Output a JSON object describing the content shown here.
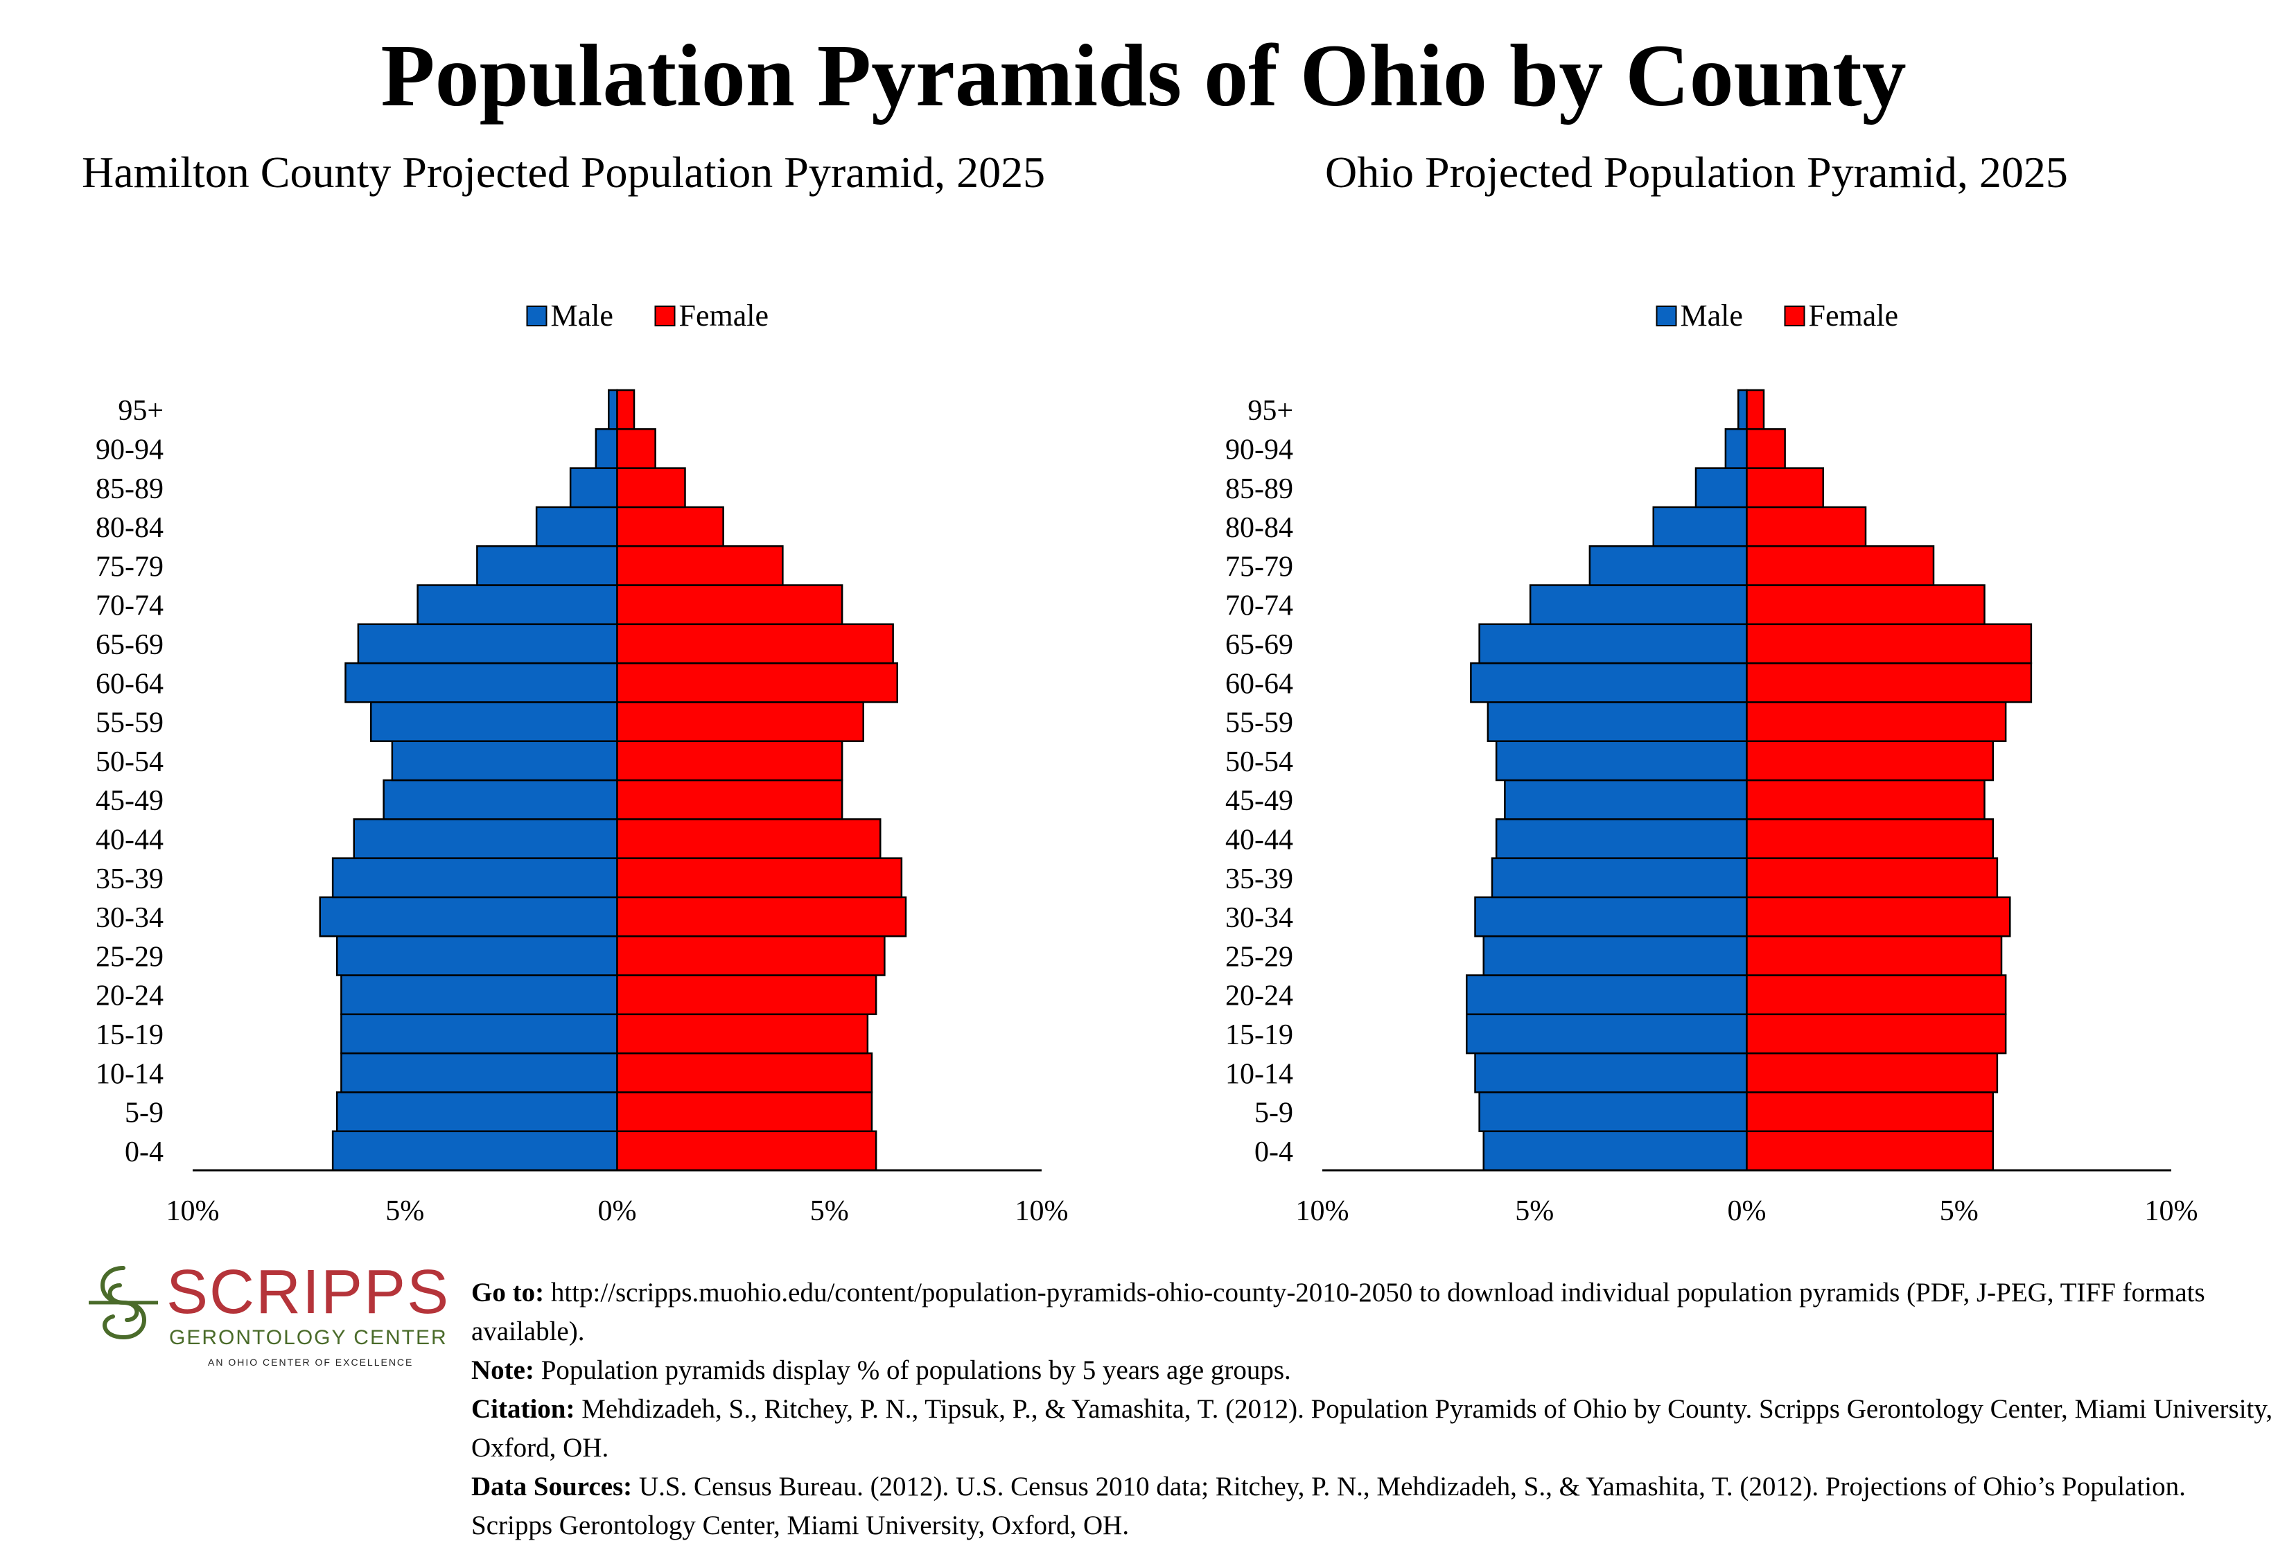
{
  "page": {
    "title": "Population Pyramids of Ohio by County"
  },
  "chart_data": [
    {
      "type": "bar",
      "subtype": "population-pyramid",
      "title": "Hamilton County Projected Population Pyramid, 2025",
      "legend": {
        "position": "top",
        "entries": [
          "Male",
          "Female"
        ]
      },
      "categories": [
        "0-4",
        "5-9",
        "10-14",
        "15-19",
        "20-24",
        "25-29",
        "30-34",
        "35-39",
        "40-44",
        "45-49",
        "50-54",
        "55-59",
        "60-64",
        "65-69",
        "70-74",
        "75-79",
        "80-84",
        "85-89",
        "90-94",
        "95+"
      ],
      "series": [
        {
          "name": "Male",
          "color": "#0a64c2",
          "values": [
            6.7,
            6.6,
            6.5,
            6.5,
            6.5,
            6.6,
            7.0,
            6.7,
            6.2,
            5.5,
            5.3,
            5.8,
            6.4,
            6.1,
            4.7,
            3.3,
            1.9,
            1.1,
            0.5,
            0.2
          ]
        },
        {
          "name": "Female",
          "color": "#ff0000",
          "values": [
            6.1,
            6.0,
            6.0,
            5.9,
            6.1,
            6.3,
            6.8,
            6.7,
            6.2,
            5.3,
            5.3,
            5.8,
            6.6,
            6.5,
            5.3,
            3.9,
            2.5,
            1.6,
            0.9,
            0.4
          ]
        }
      ],
      "xlim": [
        -10,
        10
      ],
      "x_ticks": [
        "10%",
        "5%",
        "0%",
        "5%",
        "10%"
      ]
    },
    {
      "type": "bar",
      "subtype": "population-pyramid",
      "title": "Ohio Projected Population Pyramid, 2025",
      "legend": {
        "position": "top",
        "entries": [
          "Male",
          "Female"
        ]
      },
      "categories": [
        "0-4",
        "5-9",
        "10-14",
        "15-19",
        "20-24",
        "25-29",
        "30-34",
        "35-39",
        "40-44",
        "45-49",
        "50-54",
        "55-59",
        "60-64",
        "65-69",
        "70-74",
        "75-79",
        "80-84",
        "85-89",
        "90-94",
        "95+"
      ],
      "series": [
        {
          "name": "Male",
          "color": "#0a64c2",
          "values": [
            6.2,
            6.3,
            6.4,
            6.6,
            6.6,
            6.2,
            6.4,
            6.0,
            5.9,
            5.7,
            5.9,
            6.1,
            6.5,
            6.3,
            5.1,
            3.7,
            2.2,
            1.2,
            0.5,
            0.2
          ]
        },
        {
          "name": "Female",
          "color": "#ff0000",
          "values": [
            5.8,
            5.8,
            5.9,
            6.1,
            6.1,
            6.0,
            6.2,
            5.9,
            5.8,
            5.6,
            5.8,
            6.1,
            6.7,
            6.7,
            5.6,
            4.4,
            2.8,
            1.8,
            0.9,
            0.4
          ]
        }
      ],
      "xlim": [
        -10,
        10
      ],
      "x_ticks": [
        "10%",
        "5%",
        "0%",
        "5%",
        "10%"
      ]
    }
  ],
  "logo": {
    "word": "SCRIPPS",
    "sub": "GERONTOLOGY CENTER",
    "tag": "AN OHIO CENTER OF EXCELLENCE",
    "color_primary": "#b5343a",
    "color_secondary": "#4a6b2a"
  },
  "footer": {
    "goto_label": "Go to:",
    "goto_text": " http://scripps.muohio.edu/content/population-pyramids-ohio-county-2010-2050 to download individual population pyramids (PDF, J-PEG, TIFF formats available).",
    "note_label": "Note:",
    "note_text": " Population pyramids display % of populations by 5 years age groups.",
    "citation_label": "Citation:",
    "citation_text": " Mehdizadeh, S., Ritchey, P. N., Tipsuk, P., & Yamashita, T. (2012). Population Pyramids of Ohio by County. Scripps Gerontology Center, Miami University, Oxford, OH.",
    "sources_label": "Data Sources:",
    "sources_text": " U.S. Census Bureau. (2012). U.S. Census 2010 data; Ritchey, P. N., Mehdizadeh, S., & Yamashita, T. (2012). Projections of Ohio’s Population. Scripps Gerontology Center, Miami University, Oxford, OH."
  }
}
